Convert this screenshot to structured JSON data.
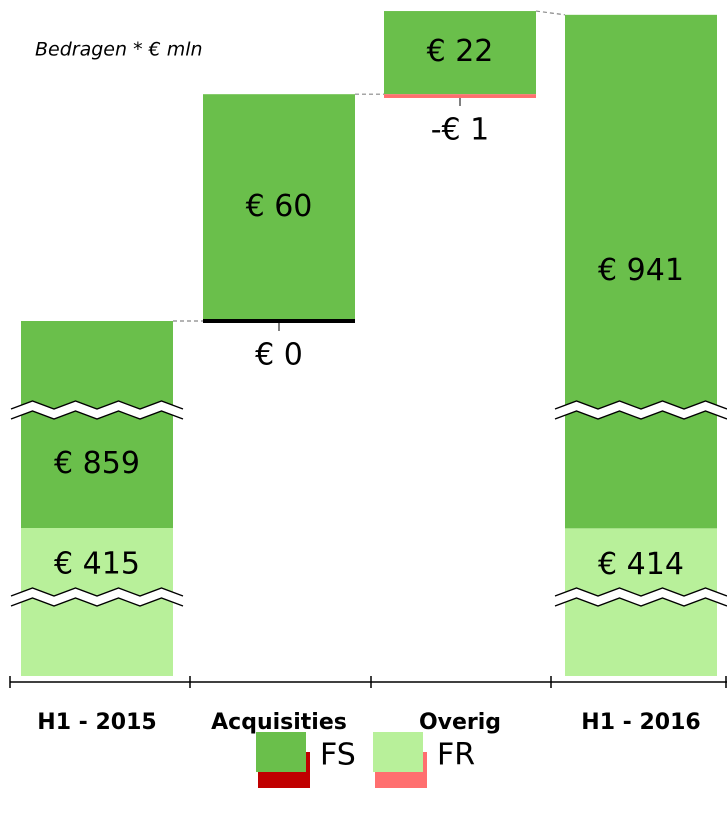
{
  "chart_data": {
    "type": "waterfall",
    "annotation": "Bedragen * € mln",
    "categories": [
      "H1 - 2015",
      "Acquisities",
      "Overig",
      "H1 - 2016"
    ],
    "bar_kinds": [
      "total",
      "delta",
      "delta",
      "total"
    ],
    "axis_break": true,
    "series": [
      {
        "name": "FS",
        "color": "#6abf4b",
        "negative_color": "#c00000",
        "values": [
          859,
          60,
          22,
          941
        ],
        "value_labels": [
          "€ 859",
          "€ 60",
          "€ 22",
          "€ 941"
        ]
      },
      {
        "name": "FR",
        "color": "#b8f09a",
        "negative_color": "#ff6f6f",
        "values": [
          415,
          0,
          -1,
          414
        ],
        "value_labels": [
          "€ 415",
          "€ 0",
          "-€ 1",
          "€ 414"
        ]
      }
    ]
  }
}
